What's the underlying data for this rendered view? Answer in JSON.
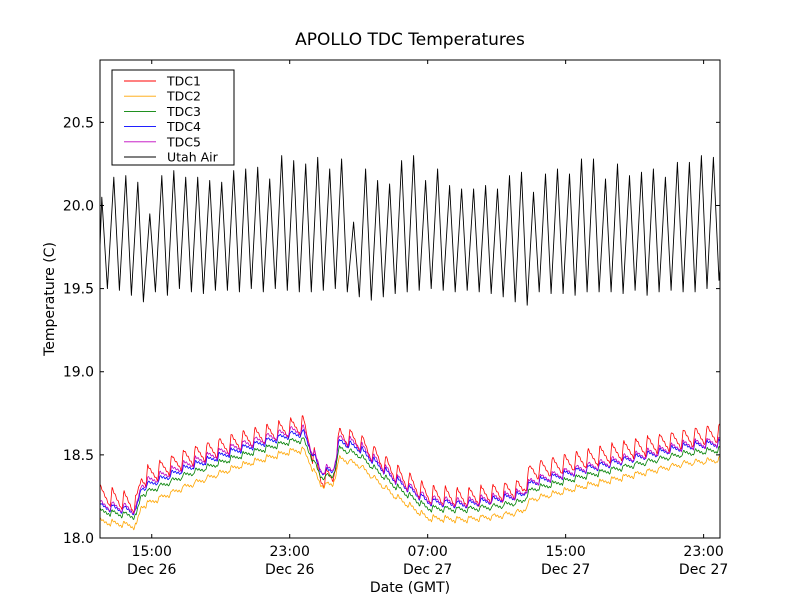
{
  "chart_data": {
    "type": "line",
    "title": "APOLLO TDC Temperatures",
    "xlabel": "Date (GMT)",
    "ylabel": "Temperature (C)",
    "x_units": "hours since Dec 26 12:00 GMT",
    "xlim": [
      0,
      35.95
    ],
    "ylim": [
      18.0,
      20.875
    ],
    "grid": false,
    "legend_position": "top-left",
    "x_ticks": [
      {
        "x": 3,
        "label_time": "15:00",
        "label_date": "Dec 26"
      },
      {
        "x": 11,
        "label_time": "23:00",
        "label_date": "Dec 26"
      },
      {
        "x": 19,
        "label_time": "07:00",
        "label_date": "Dec 27"
      },
      {
        "x": 27,
        "label_time": "15:00",
        "label_date": "Dec 27"
      },
      {
        "x": 35,
        "label_time": "23:00",
        "label_date": "Dec 27"
      }
    ],
    "y_ticks": [
      {
        "y": 18.0,
        "label": "18.0"
      },
      {
        "y": 18.5,
        "label": "18.5"
      },
      {
        "y": 19.0,
        "label": "19.0"
      },
      {
        "y": 19.5,
        "label": "19.5"
      },
      {
        "y": 20.0,
        "label": "20.0"
      },
      {
        "y": 20.5,
        "label": "20.5"
      }
    ],
    "cycle_period_hours": 0.69,
    "series": [
      {
        "name": "TDC1",
        "color": "#ff0000",
        "oscillation_amplitude": 0.12,
        "trend": [
          [
            0,
            18.26
          ],
          [
            1.5,
            18.22
          ],
          [
            2.1,
            18.2
          ],
          [
            2.4,
            18.36
          ],
          [
            5,
            18.48
          ],
          [
            8,
            18.58
          ],
          [
            11,
            18.66
          ],
          [
            11.8,
            18.68
          ],
          [
            12.8,
            18.36
          ],
          [
            13.5,
            18.36
          ],
          [
            13.9,
            18.62
          ],
          [
            15,
            18.58
          ],
          [
            17,
            18.4
          ],
          [
            19,
            18.26
          ],
          [
            21,
            18.24
          ],
          [
            23,
            18.27
          ],
          [
            24.5,
            18.3
          ],
          [
            25,
            18.4
          ],
          [
            28,
            18.47
          ],
          [
            31,
            18.54
          ],
          [
            34,
            18.6
          ],
          [
            35.95,
            18.63
          ]
        ]
      },
      {
        "name": "TDC2",
        "color": "#ffa500",
        "oscillation_amplitude": 0.035,
        "trend": [
          [
            0,
            18.1
          ],
          [
            1.5,
            18.08
          ],
          [
            2.1,
            18.07
          ],
          [
            2.4,
            18.19
          ],
          [
            5,
            18.31
          ],
          [
            8,
            18.43
          ],
          [
            11,
            18.52
          ],
          [
            11.8,
            18.53
          ],
          [
            12.8,
            18.32
          ],
          [
            13.5,
            18.32
          ],
          [
            13.9,
            18.48
          ],
          [
            15,
            18.44
          ],
          [
            17,
            18.26
          ],
          [
            19,
            18.12
          ],
          [
            21,
            18.11
          ],
          [
            23,
            18.13
          ],
          [
            24.5,
            18.16
          ],
          [
            25,
            18.23
          ],
          [
            28,
            18.31
          ],
          [
            31,
            18.38
          ],
          [
            34,
            18.45
          ],
          [
            35.95,
            18.47
          ]
        ]
      },
      {
        "name": "TDC3",
        "color": "#008000",
        "oscillation_amplitude": 0.035,
        "trend": [
          [
            0,
            18.16
          ],
          [
            1.5,
            18.14
          ],
          [
            2.1,
            18.13
          ],
          [
            2.4,
            18.26
          ],
          [
            5,
            18.38
          ],
          [
            8,
            18.49
          ],
          [
            11,
            18.58
          ],
          [
            11.8,
            18.59
          ],
          [
            12.8,
            18.37
          ],
          [
            13.5,
            18.37
          ],
          [
            13.9,
            18.54
          ],
          [
            15,
            18.5
          ],
          [
            17,
            18.32
          ],
          [
            19,
            18.18
          ],
          [
            21,
            18.17
          ],
          [
            23,
            18.19
          ],
          [
            24.5,
            18.22
          ],
          [
            25,
            18.29
          ],
          [
            28,
            18.37
          ],
          [
            31,
            18.44
          ],
          [
            34,
            18.51
          ],
          [
            35.95,
            18.53
          ]
        ]
      },
      {
        "name": "TDC4",
        "color": "#0000ff",
        "oscillation_amplitude": 0.045,
        "trend": [
          [
            0,
            18.19
          ],
          [
            1.5,
            18.17
          ],
          [
            2.1,
            18.16
          ],
          [
            2.4,
            18.3
          ],
          [
            5,
            18.42
          ],
          [
            8,
            18.53
          ],
          [
            11,
            18.62
          ],
          [
            11.8,
            18.63
          ],
          [
            12.8,
            18.4
          ],
          [
            13.5,
            18.4
          ],
          [
            13.9,
            18.58
          ],
          [
            15,
            18.54
          ],
          [
            17,
            18.36
          ],
          [
            19,
            18.22
          ],
          [
            21,
            18.2
          ],
          [
            23,
            18.23
          ],
          [
            24.5,
            18.26
          ],
          [
            25,
            18.33
          ],
          [
            28,
            18.41
          ],
          [
            31,
            18.48
          ],
          [
            34,
            18.55
          ],
          [
            35.95,
            18.57
          ]
        ]
      },
      {
        "name": "TDC5",
        "color": "#bf00bf",
        "oscillation_amplitude": 0.06,
        "trend": [
          [
            0,
            18.2
          ],
          [
            1.5,
            18.18
          ],
          [
            2.1,
            18.17
          ],
          [
            2.4,
            18.32
          ],
          [
            5,
            18.44
          ],
          [
            8,
            18.55
          ],
          [
            11,
            18.64
          ],
          [
            11.8,
            18.65
          ],
          [
            12.8,
            18.41
          ],
          [
            13.5,
            18.41
          ],
          [
            13.9,
            18.6
          ],
          [
            15,
            18.56
          ],
          [
            17,
            18.37
          ],
          [
            19,
            18.23
          ],
          [
            21,
            18.21
          ],
          [
            23,
            18.24
          ],
          [
            24.5,
            18.27
          ],
          [
            25,
            18.34
          ],
          [
            28,
            18.42
          ],
          [
            31,
            18.49
          ],
          [
            34,
            18.56
          ],
          [
            35.95,
            18.58
          ]
        ]
      },
      {
        "name": "Utah Air",
        "color": "#000000",
        "trough_default": 19.49,
        "peaks": [
          20.05,
          20.17,
          20.18,
          20.14,
          19.95,
          20.18,
          20.21,
          20.17,
          20.17,
          20.15,
          20.14,
          20.21,
          20.22,
          20.23,
          20.16,
          20.3,
          20.27,
          20.25,
          20.29,
          20.22,
          20.28,
          19.9,
          20.22,
          20.15,
          20.13,
          20.27,
          20.3,
          20.15,
          20.22,
          20.12,
          20.1,
          20.1,
          20.12,
          20.1,
          20.18,
          20.2,
          20.08,
          20.19,
          20.22,
          20.19,
          20.28,
          20.28,
          20.16,
          20.25,
          20.18,
          20.2,
          20.22,
          20.17,
          20.26,
          20.26,
          20.3,
          20.29
        ],
        "troughs": [
          19.5,
          19.49,
          19.46,
          19.42,
          19.48,
          19.46,
          19.5,
          19.48,
          19.47,
          19.49,
          19.49,
          19.48,
          19.5,
          19.48,
          19.5,
          19.49,
          19.48,
          19.48,
          19.49,
          19.5,
          19.48,
          19.45,
          19.43,
          19.45,
          19.47,
          19.48,
          19.49,
          19.5,
          19.49,
          19.48,
          19.49,
          19.48,
          19.47,
          19.45,
          19.42,
          19.4,
          19.48,
          19.47,
          19.47,
          19.46,
          19.48,
          19.48,
          19.48,
          19.47,
          19.49,
          19.46,
          19.48,
          19.49,
          19.48,
          19.48,
          19.5,
          19.55
        ]
      }
    ]
  }
}
